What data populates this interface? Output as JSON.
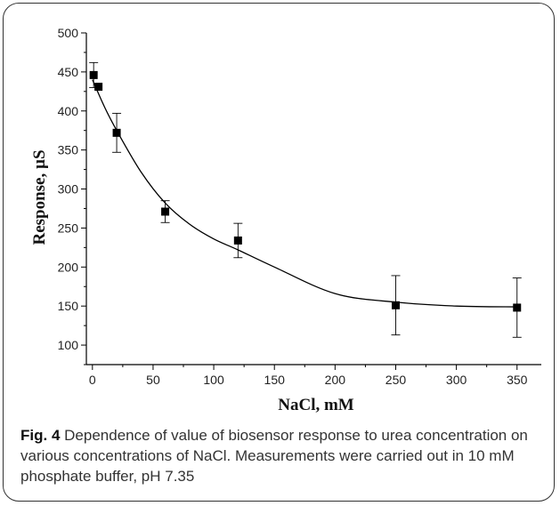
{
  "caption": {
    "label": "Fig. 4",
    "text": "Dependence of value of biosensor response to urea concentration on various concentrations of NaCl. Measurements were carried out in 10 mM phosphate buffer, pH 7.35"
  },
  "chart_data": {
    "type": "scatter",
    "xlabel": "NaCl, mM",
    "ylabel": "Response, µS",
    "xlim": [
      -5,
      370
    ],
    "ylim": [
      75,
      500
    ],
    "xticks": [
      0,
      50,
      100,
      150,
      200,
      250,
      300,
      350
    ],
    "yticks": [
      100,
      150,
      200,
      250,
      300,
      350,
      400,
      450,
      500
    ],
    "grid": false,
    "legend": "none",
    "series": [
      {
        "x": [
          1,
          5,
          20,
          60,
          120,
          250,
          350
        ],
        "y": [
          446,
          431,
          372,
          271,
          234,
          151,
          148
        ],
        "error": [
          16,
          0,
          25,
          14,
          22,
          38,
          38
        ],
        "marker": "square"
      }
    ],
    "fit_curve": {
      "x": [
        0,
        10,
        20,
        40,
        60,
        80,
        100,
        120,
        150,
        200,
        250,
        300,
        350
      ],
      "y": [
        440,
        405,
        375,
        322,
        282,
        255,
        236,
        222,
        200,
        166,
        155,
        150,
        149
      ]
    },
    "colors": {
      "marker": "#000000",
      "line": "#000000"
    }
  }
}
